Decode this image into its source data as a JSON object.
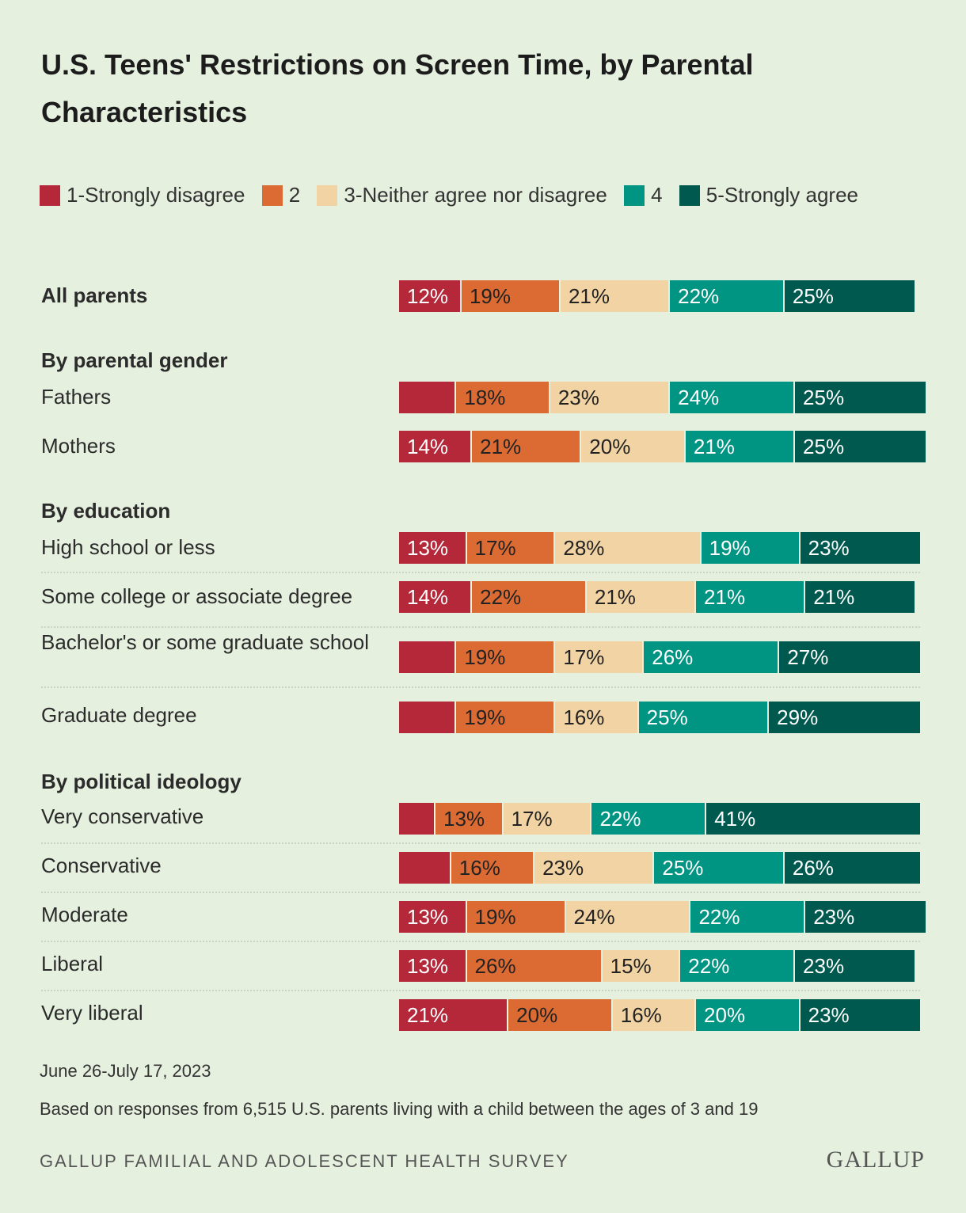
{
  "title": "U.S. Teens' Restrictions on Screen Time, by Parental Characteristics",
  "legend": [
    {
      "label": "1-Strongly disagree",
      "color": "#b5283a"
    },
    {
      "label": "2",
      "color": "#dc6b33"
    },
    {
      "label": "3-Neither agree nor disagree",
      "color": "#f2d3a3"
    },
    {
      "label": "4",
      "color": "#009482"
    },
    {
      "label": "5-Strongly agree",
      "color": "#00594f"
    }
  ],
  "chart_data": {
    "type": "bar",
    "stacked": true,
    "orientation": "horizontal",
    "series_names": [
      "1-Strongly disagree",
      "2",
      "3-Neither agree nor disagree",
      "4",
      "5-Strongly agree"
    ],
    "groups": [
      {
        "title": "",
        "rows": [
          {
            "label": "All parents",
            "values": [
              12,
              19,
              21,
              22,
              25
            ],
            "shown": [
              "12%",
              "19%",
              "21%",
              "22%",
              "25%"
            ]
          }
        ]
      },
      {
        "title": "By parental gender",
        "rows": [
          {
            "label": "Fathers",
            "values": [
              11,
              18,
              23,
              24,
              25
            ],
            "shown": [
              "",
              "18%",
              "23%",
              "24%",
              "25%"
            ]
          },
          {
            "label": "Mothers",
            "values": [
              14,
              21,
              20,
              21,
              25
            ],
            "shown": [
              "14%",
              "21%",
              "20%",
              "21%",
              "25%"
            ]
          }
        ]
      },
      {
        "title": "By education",
        "rows": [
          {
            "label": "High school or less",
            "values": [
              13,
              17,
              28,
              19,
              23
            ],
            "shown": [
              "13%",
              "17%",
              "28%",
              "19%",
              "23%"
            ]
          },
          {
            "label": "Some college or associate degree",
            "values": [
              14,
              22,
              21,
              21,
              21
            ],
            "shown": [
              "14%",
              "22%",
              "21%",
              "21%",
              "21%"
            ]
          },
          {
            "label": "Bachelor's or some graduate school",
            "values": [
              11,
              19,
              17,
              26,
              27
            ],
            "shown": [
              "",
              "19%",
              "17%",
              "26%",
              "27%"
            ]
          },
          {
            "label": "Graduate degree",
            "values": [
              11,
              19,
              16,
              25,
              29
            ],
            "shown": [
              "",
              "19%",
              "16%",
              "25%",
              "29%"
            ]
          }
        ]
      },
      {
        "title": "By political ideology",
        "rows": [
          {
            "label": "Very conservative",
            "values": [
              7,
              13,
              17,
              22,
              41
            ],
            "shown": [
              "",
              "13%",
              "17%",
              "22%",
              "41%"
            ]
          },
          {
            "label": "Conservative",
            "values": [
              10,
              16,
              23,
              25,
              26
            ],
            "shown": [
              "",
              "16%",
              "23%",
              "25%",
              "26%"
            ]
          },
          {
            "label": "Moderate",
            "values": [
              13,
              19,
              24,
              22,
              23
            ],
            "shown": [
              "13%",
              "19%",
              "24%",
              "22%",
              "23%"
            ]
          },
          {
            "label": "Liberal",
            "values": [
              13,
              26,
              15,
              22,
              23
            ],
            "shown": [
              "13%",
              "26%",
              "15%",
              "22%",
              "23%"
            ]
          },
          {
            "label": "Very liberal",
            "values": [
              21,
              20,
              16,
              20,
              23
            ],
            "shown": [
              "21%",
              "20%",
              "16%",
              "20%",
              "23%"
            ]
          }
        ]
      }
    ]
  },
  "footer": {
    "date": "June 26-July 17, 2023",
    "note": "Based on responses from 6,515 U.S. parents living with a child between the ages of 3 and 19",
    "source": "GALLUP FAMILIAL AND ADOLESCENT HEALTH SURVEY",
    "logo": "GALLUP"
  }
}
